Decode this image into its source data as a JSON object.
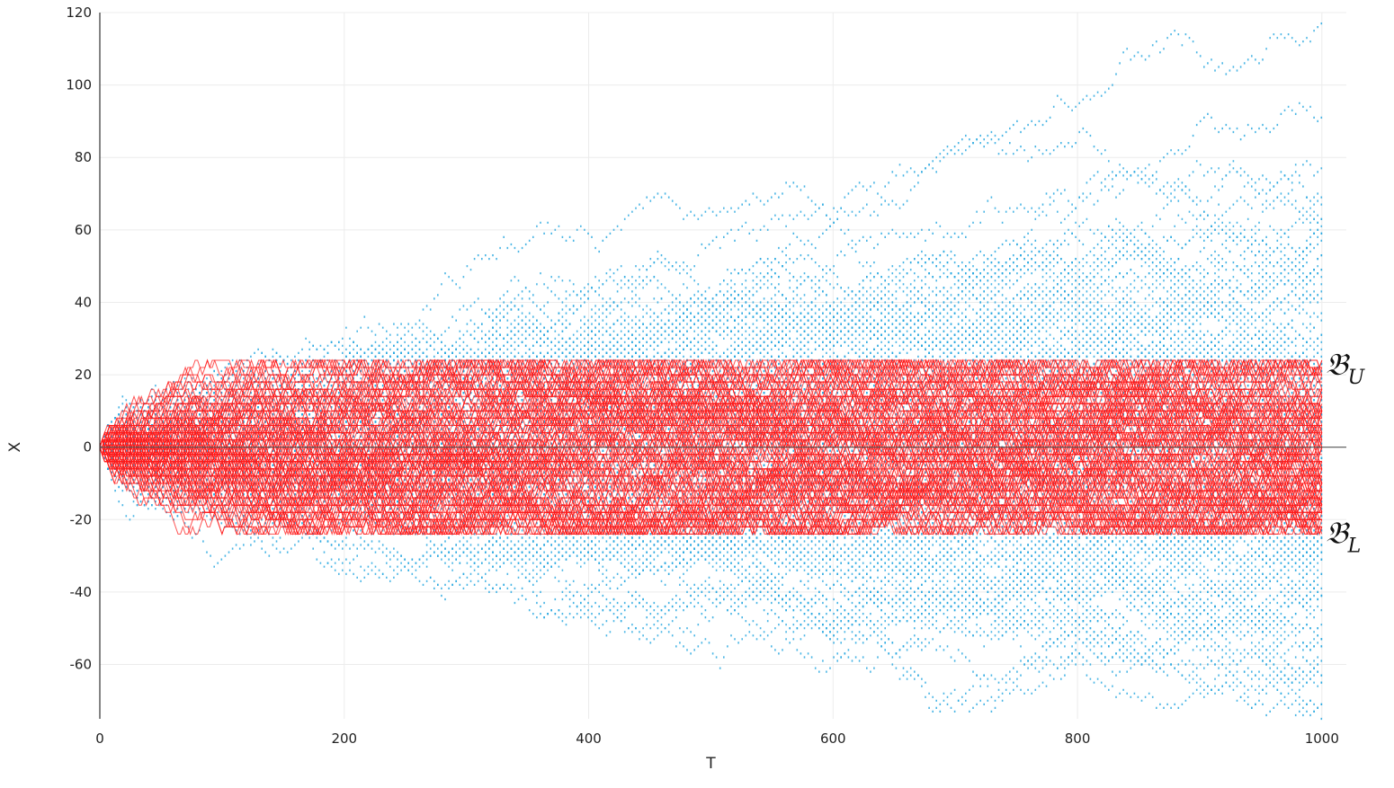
{
  "chart_data": {
    "type": "scatter",
    "xlabel": "T",
    "ylabel": "X",
    "xlim": [
      0,
      1020
    ],
    "ylim": [
      -75,
      120
    ],
    "x_ticks": [
      0,
      200,
      400,
      600,
      800,
      1000
    ],
    "y_ticks": [
      120,
      100,
      80,
      60,
      40,
      20,
      0,
      -20,
      -40,
      -60
    ],
    "grid": true,
    "colors": {
      "unconstrained": "#29a8e0",
      "constrained": "#ff1a1a",
      "zero_line": "#555555",
      "grid": "#ececec",
      "axis": "#333333"
    },
    "series": [
      {
        "render": "points",
        "description_of_shape": "random walk paths, step ±1, spreading with sqrt(T)",
        "color_key": "unconstrained"
      },
      {
        "render": "lines",
        "description_of_shape": "random walk paths confined between reflecting boundaries",
        "color_key": "constrained",
        "upper_bound": 24,
        "lower_bound": -24
      }
    ],
    "boundaries": {
      "upper": {
        "glyph": "𝔅",
        "subscript": "U",
        "value": 24
      },
      "lower": {
        "glyph": "𝔅",
        "subscript": "L",
        "value": -24
      }
    }
  }
}
